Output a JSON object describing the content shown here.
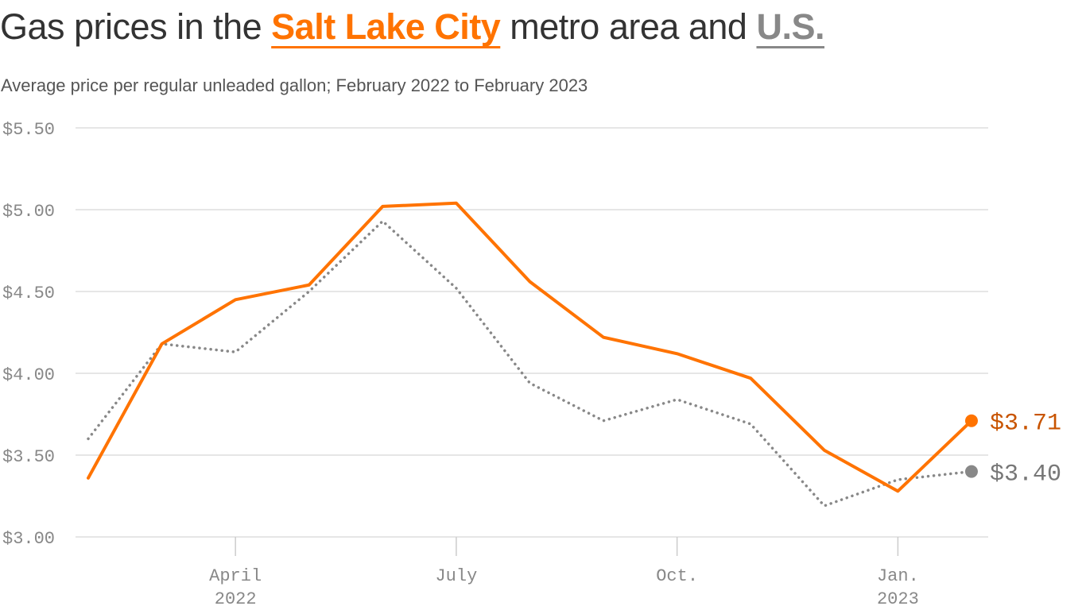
{
  "title": {
    "part1": "Gas prices in the ",
    "highlight1": "Salt Lake City",
    "part2": " metro area and ",
    "highlight2": "U.S."
  },
  "subtitle": "Average price per regular unleaded gallon; February 2022 to February 2023",
  "chart_data": {
    "type": "line",
    "title": "Gas prices in the Salt Lake City metro area and U.S.",
    "subtitle": "Average price per regular unleaded gallon; February 2022 to February 2023",
    "x": [
      "2022-02",
      "2022-03",
      "2022-04",
      "2022-05",
      "2022-06",
      "2022-07",
      "2022-08",
      "2022-09",
      "2022-10",
      "2022-11",
      "2022-12",
      "2023-01",
      "2023-02"
    ],
    "x_ticks": [
      {
        "x": "2022-04",
        "label": "April",
        "sublabel": "2022"
      },
      {
        "x": "2022-07",
        "label": "July",
        "sublabel": ""
      },
      {
        "x": "2022-10",
        "label": "Oct.",
        "sublabel": ""
      },
      {
        "x": "2023-01",
        "label": "Jan.",
        "sublabel": "2023"
      }
    ],
    "ylim": [
      3.0,
      5.5
    ],
    "y_ticks": [
      3.0,
      3.5,
      4.0,
      4.5,
      5.0,
      5.5
    ],
    "y_tick_labels": [
      "$3.00",
      "$3.50",
      "$4.00",
      "$4.50",
      "$5.00",
      "$5.50"
    ],
    "grid": true,
    "series": [
      {
        "name": "Salt Lake City",
        "color": "#ff7300",
        "label_color": "#c85400",
        "style": "solid",
        "values": [
          3.36,
          4.18,
          4.45,
          4.54,
          5.02,
          5.04,
          4.56,
          4.22,
          4.12,
          3.97,
          3.53,
          3.28,
          3.71
        ],
        "end_label": "$3.71"
      },
      {
        "name": "U.S.",
        "color": "#888888",
        "label_color": "#777777",
        "style": "dotted",
        "values": [
          3.6,
          4.18,
          4.13,
          4.5,
          4.93,
          4.52,
          3.94,
          3.71,
          3.84,
          3.69,
          3.19,
          3.35,
          3.4
        ],
        "end_label": "$3.40"
      }
    ]
  }
}
